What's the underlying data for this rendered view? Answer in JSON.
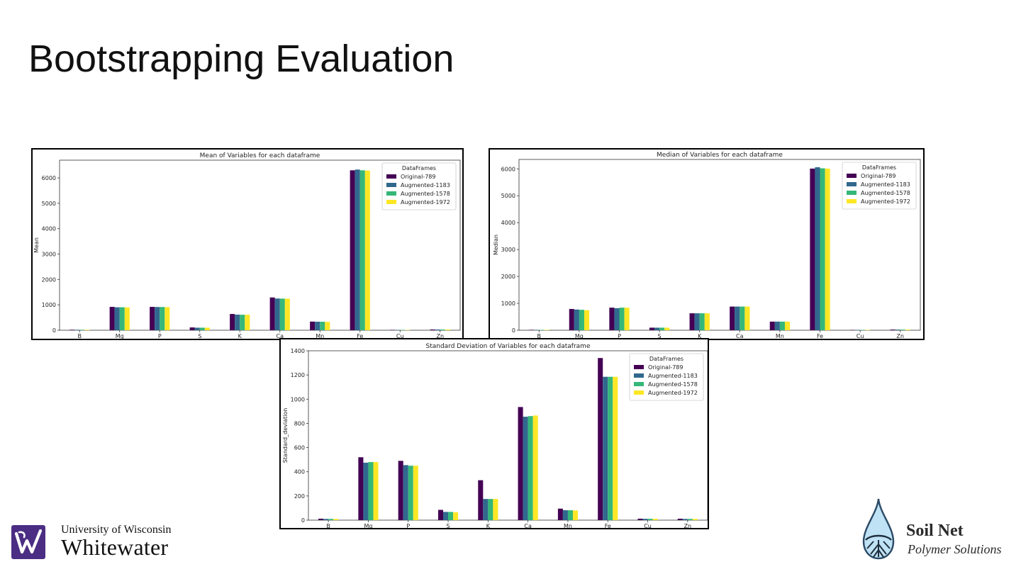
{
  "slide": {
    "title": "Bootstrapping Evaluation"
  },
  "colors": {
    "Original-789": "#440154",
    "Augmented-1183": "#31688e",
    "Augmented-1578": "#35b779",
    "Augmented-1972": "#fde725"
  },
  "chart_data": [
    {
      "id": "mean",
      "type": "bar",
      "title": "Mean of Variables for each dataframe",
      "xlabel": "",
      "ylabel": "Mean",
      "ylim": [
        0,
        6700
      ],
      "yticks": [
        0,
        1000,
        2000,
        3000,
        4000,
        5000,
        6000
      ],
      "categories": [
        "B",
        "Mg",
        "P",
        "S",
        "K",
        "Ca",
        "Mn",
        "Fe",
        "Cu",
        "Zn"
      ],
      "legend": {
        "title": "DataFrames",
        "position": "top-right"
      },
      "grid": false,
      "series": [
        {
          "name": "Original-789",
          "values": [
            20,
            920,
            920,
            110,
            640,
            1290,
            340,
            6300,
            15,
            30
          ]
        },
        {
          "name": "Augmented-1183",
          "values": [
            18,
            905,
            915,
            100,
            615,
            1250,
            335,
            6330,
            14,
            28
          ]
        },
        {
          "name": "Augmented-1578",
          "values": [
            18,
            905,
            915,
            100,
            610,
            1245,
            335,
            6300,
            14,
            28
          ]
        },
        {
          "name": "Augmented-1972",
          "values": [
            18,
            900,
            910,
            100,
            610,
            1245,
            330,
            6290,
            14,
            28
          ]
        }
      ]
    },
    {
      "id": "median",
      "type": "bar",
      "title": "Median of Variables for each dataframe",
      "xlabel": "",
      "ylabel": "Median",
      "ylim": [
        0,
        6350
      ],
      "yticks": [
        0,
        1000,
        2000,
        3000,
        4000,
        5000,
        6000
      ],
      "categories": [
        "B",
        "Mg",
        "P",
        "S",
        "K",
        "Ca",
        "Mn",
        "Fe",
        "Cu",
        "Zn"
      ],
      "legend": {
        "title": "DataFrames",
        "position": "top-right"
      },
      "grid": false,
      "series": [
        {
          "name": "Original-789",
          "values": [
            15,
            790,
            840,
            95,
            630,
            880,
            320,
            6010,
            12,
            25
          ]
        },
        {
          "name": "Augmented-1183",
          "values": [
            14,
            770,
            820,
            95,
            630,
            880,
            320,
            6060,
            12,
            24
          ]
        },
        {
          "name": "Augmented-1578",
          "values": [
            14,
            760,
            840,
            95,
            630,
            880,
            320,
            6020,
            12,
            24
          ]
        },
        {
          "name": "Augmented-1972",
          "values": [
            14,
            745,
            840,
            95,
            630,
            880,
            320,
            6010,
            12,
            24
          ]
        }
      ]
    },
    {
      "id": "std",
      "type": "bar",
      "title": "Standard Deviation of Variables for each dataframe",
      "xlabel": "",
      "ylabel": "Standard_deviation",
      "ylim": [
        0,
        1400
      ],
      "yticks": [
        0,
        200,
        400,
        600,
        800,
        1000,
        1200,
        1400
      ],
      "categories": [
        "B",
        "Mg",
        "P",
        "S",
        "K",
        "Ca",
        "Mn",
        "Fe",
        "Cu",
        "Zn"
      ],
      "legend": {
        "title": "DataFrames",
        "position": "top-right"
      },
      "grid": false,
      "series": [
        {
          "name": "Original-789",
          "values": [
            12,
            520,
            490,
            85,
            330,
            935,
            95,
            1340,
            12,
            12
          ]
        },
        {
          "name": "Augmented-1183",
          "values": [
            10,
            475,
            455,
            68,
            175,
            855,
            82,
            1185,
            11,
            10
          ]
        },
        {
          "name": "Augmented-1578",
          "values": [
            10,
            480,
            450,
            68,
            175,
            860,
            82,
            1185,
            11,
            10
          ]
        },
        {
          "name": "Augmented-1972",
          "values": [
            10,
            480,
            450,
            65,
            175,
            865,
            80,
            1185,
            11,
            10
          ]
        }
      ]
    }
  ],
  "logos": {
    "uww": {
      "line1": "University of Wisconsin",
      "line2": "Whitewater"
    },
    "soilnet": {
      "line1": "Soil Net",
      "line2": "Polymer Solutions"
    }
  }
}
